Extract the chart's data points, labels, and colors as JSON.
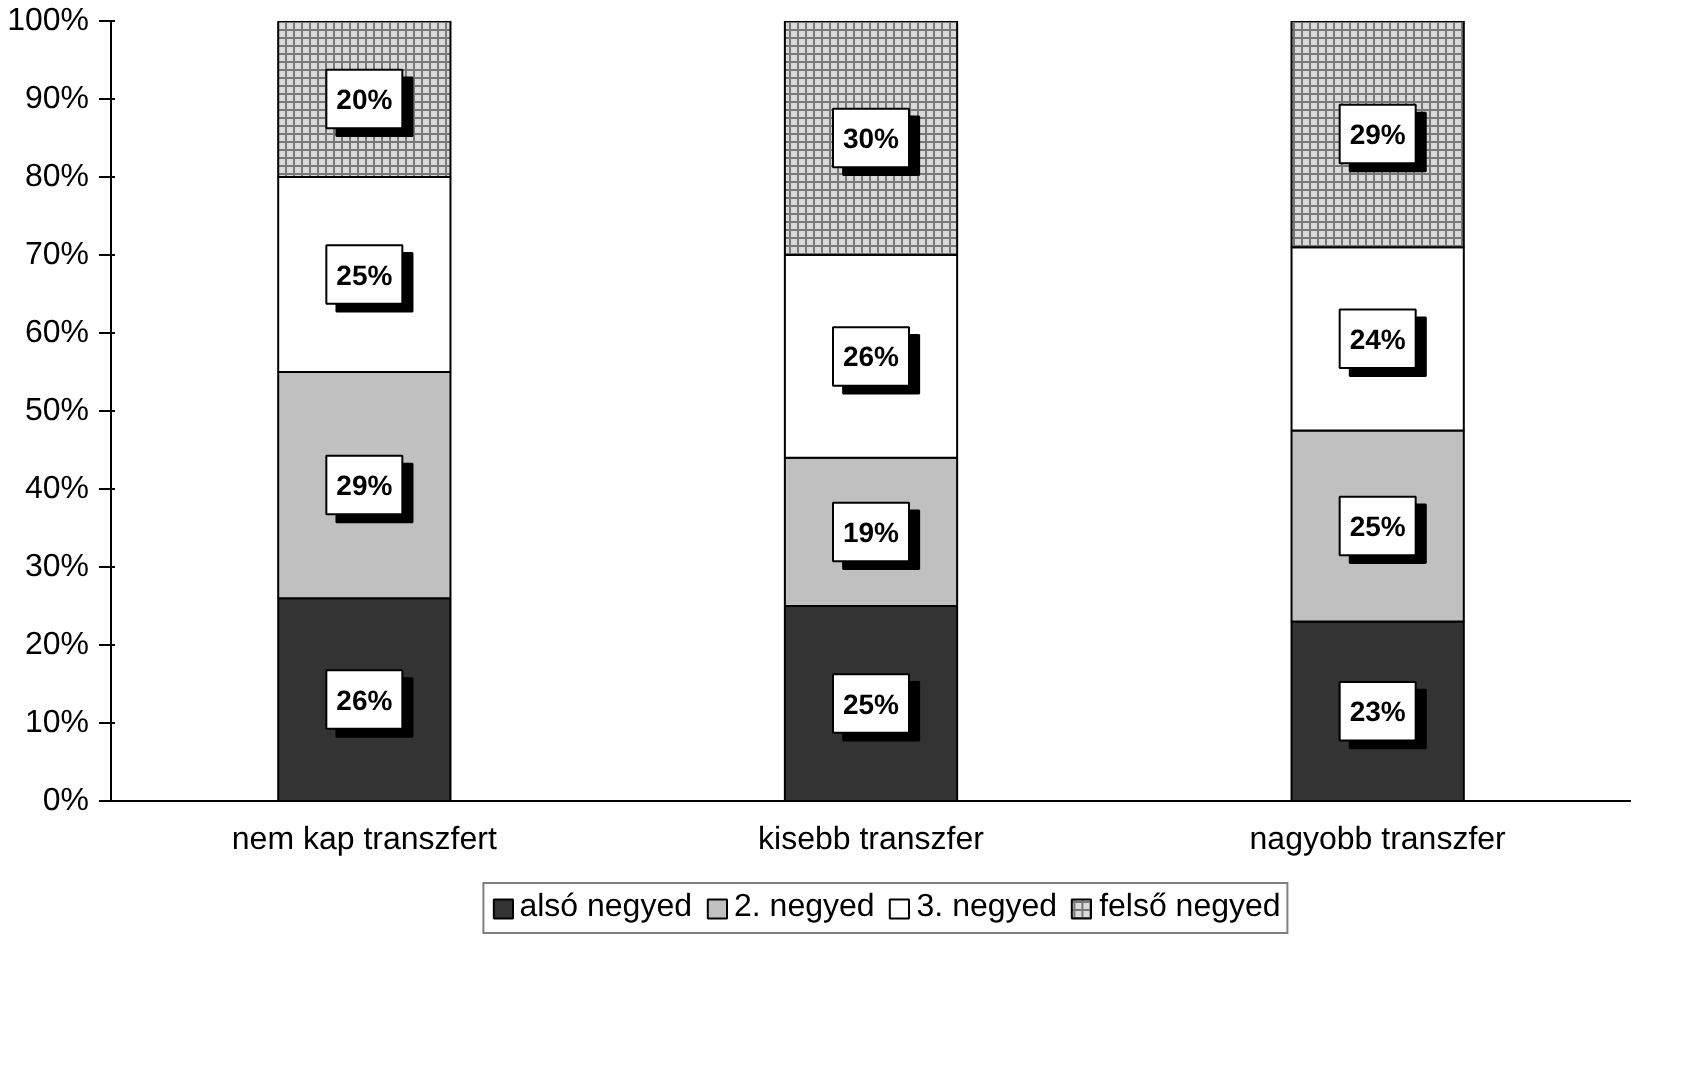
{
  "chart_data": {
    "type": "bar",
    "stacked": true,
    "categories": [
      "nem kap transzfert",
      "kisebb transzfer",
      "nagyobb transzfer"
    ],
    "series": [
      {
        "name": "alsó negyed",
        "color": "#333333",
        "values": [
          26,
          25,
          23
        ],
        "value_labels": [
          "26%",
          "25%",
          "23%"
        ]
      },
      {
        "name": "2. negyed",
        "color": "#c0c0c0",
        "values": [
          29,
          19,
          24.5
        ],
        "value_labels": [
          "29%",
          "19%",
          "25%"
        ]
      },
      {
        "name": "3. negyed",
        "color": "#ffffff",
        "values": [
          25,
          26,
          23.5
        ],
        "value_labels": [
          "25%",
          "26%",
          "24%"
        ]
      },
      {
        "name": "felső negyed",
        "color": "#d9d9d9",
        "values": [
          20,
          30,
          29
        ],
        "value_labels": [
          "20%",
          "30%",
          "29%"
        ]
      }
    ],
    "ylim": [
      0,
      100
    ],
    "yticks": [
      {
        "value": 0,
        "label": "0%"
      },
      {
        "value": 10,
        "label": "10%"
      },
      {
        "value": 20,
        "label": "20%"
      },
      {
        "value": 30,
        "label": "30%"
      },
      {
        "value": 40,
        "label": "40%"
      },
      {
        "value": 50,
        "label": "50%"
      },
      {
        "value": 60,
        "label": "60%"
      },
      {
        "value": 70,
        "label": "70%"
      },
      {
        "value": 80,
        "label": "80%"
      },
      {
        "value": 90,
        "label": "90%"
      },
      {
        "value": 100,
        "label": "100%"
      }
    ],
    "grid": false,
    "legend": "bottom"
  }
}
